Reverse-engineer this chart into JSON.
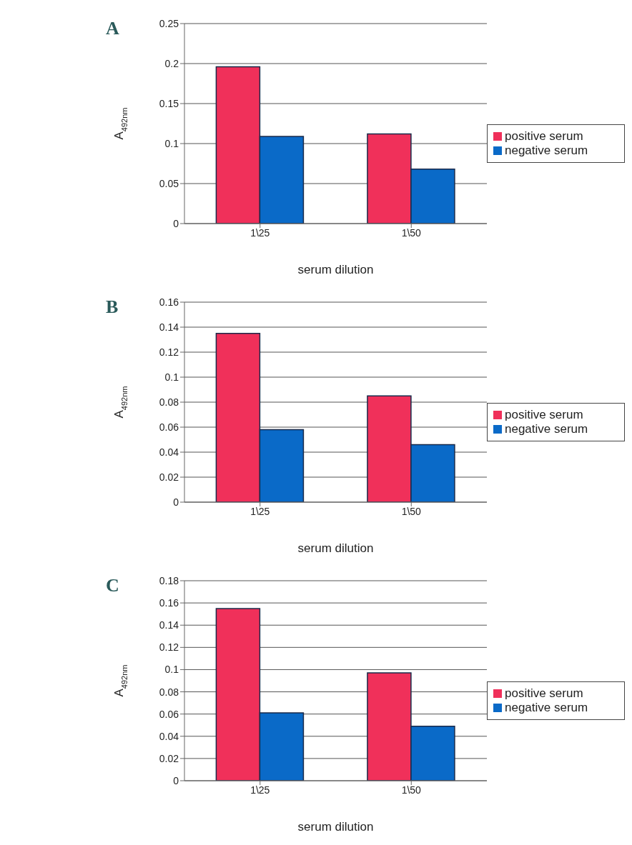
{
  "chart_data": [
    {
      "type": "bar",
      "title": "A",
      "xlabel": "serum dilution",
      "ylabel": "A$_{492nm}$",
      "categories": [
        "1\\25",
        "1\\50"
      ],
      "series": [
        {
          "name": "positive serum",
          "color": "#f0305a",
          "values": [
            0.196,
            0.112
          ]
        },
        {
          "name": "negative serum",
          "color": "#0a6ac8",
          "values": [
            0.109,
            0.068
          ]
        }
      ],
      "ylim": [
        0,
        0.25
      ],
      "yticks": [
        0,
        0.05,
        0.1,
        0.15,
        0.2,
        0.25
      ],
      "grid": "y",
      "legend": "right"
    },
    {
      "type": "bar",
      "title": "B",
      "xlabel": "serum dilution",
      "ylabel": "A$_{492nm}$",
      "categories": [
        "1\\25",
        "1\\50"
      ],
      "series": [
        {
          "name": "positive serum",
          "color": "#f0305a",
          "values": [
            0.135,
            0.085
          ]
        },
        {
          "name": "negative serum",
          "color": "#0a6ac8",
          "values": [
            0.058,
            0.046
          ]
        }
      ],
      "ylim": [
        0,
        0.16
      ],
      "yticks": [
        0,
        0.02,
        0.04,
        0.06,
        0.08,
        0.1,
        0.12,
        0.14,
        0.16
      ],
      "grid": "y",
      "legend": "right"
    },
    {
      "type": "bar",
      "title": "C",
      "xlabel": "serum dilution",
      "ylabel": "A$_{492nm}$",
      "categories": [
        "1\\25",
        "1\\50"
      ],
      "series": [
        {
          "name": "positive serum",
          "color": "#f0305a",
          "values": [
            0.155,
            0.097
          ]
        },
        {
          "name": "negative serum",
          "color": "#0a6ac8",
          "values": [
            0.061,
            0.049
          ]
        }
      ],
      "ylim": [
        0,
        0.18
      ],
      "yticks": [
        0,
        0.02,
        0.04,
        0.06,
        0.08,
        0.1,
        0.12,
        0.14,
        0.16,
        0.18
      ],
      "grid": "y",
      "legend": "right"
    }
  ]
}
